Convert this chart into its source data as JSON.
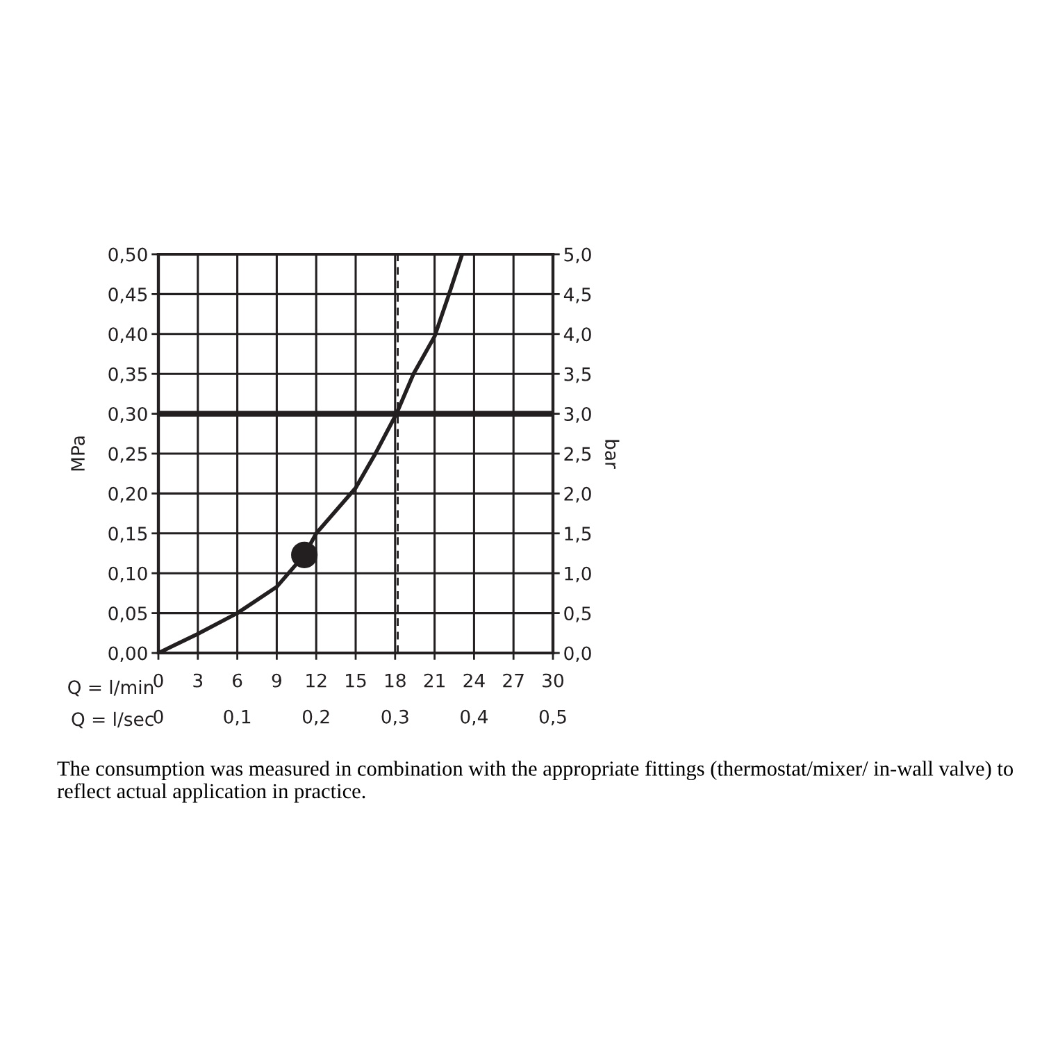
{
  "chart_data": {
    "type": "line",
    "xlabel": "Q = l/min",
    "x2label": "Q = l/sec",
    "ylabel": "MPa",
    "y2label": "bar",
    "xlim": [
      0,
      30
    ],
    "xticks": [
      0,
      3,
      6,
      9,
      12,
      15,
      18,
      21,
      24,
      27,
      30
    ],
    "x2lim": [
      0,
      0.5
    ],
    "x2ticks": [
      0,
      {
        "value": 0.1,
        "label": "0,1"
      },
      {
        "value": 0.2,
        "label": "0,2"
      },
      {
        "value": 0.3,
        "label": "0,3"
      },
      {
        "value": 0.4,
        "label": "0,4"
      },
      {
        "value": 0.5,
        "label": "0,5"
      }
    ],
    "ylim": [
      0,
      0.5
    ],
    "yticks": [
      {
        "value": 0,
        "label": "0,00"
      },
      {
        "value": 0.05,
        "label": "0,05"
      },
      {
        "value": 0.1,
        "label": "0,10"
      },
      {
        "value": 0.15,
        "label": "0,15"
      },
      {
        "value": 0.2,
        "label": "0,20"
      },
      {
        "value": 0.25,
        "label": "0,25"
      },
      {
        "value": 0.3,
        "label": "0,30"
      },
      {
        "value": 0.35,
        "label": "0,35"
      },
      {
        "value": 0.4,
        "label": "0,40"
      },
      {
        "value": 0.45,
        "label": "0,45"
      },
      {
        "value": 0.5,
        "label": "0,50"
      }
    ],
    "y2lim": [
      0,
      5
    ],
    "y2ticks": [
      {
        "value": 0,
        "label": "0,0"
      },
      {
        "value": 0.5,
        "label": "0,5"
      },
      {
        "value": 1,
        "label": "1,0"
      },
      {
        "value": 1.5,
        "label": "1,5"
      },
      {
        "value": 2,
        "label": "2,0"
      },
      {
        "value": 2.5,
        "label": "2,5"
      },
      {
        "value": 3,
        "label": "3,0"
      },
      {
        "value": 3.5,
        "label": "3,5"
      },
      {
        "value": 4,
        "label": "4,0"
      },
      {
        "value": 4.5,
        "label": "4,5"
      },
      {
        "value": 5,
        "label": "5,0"
      }
    ],
    "series": [
      {
        "color": "#231f20",
        "x": [
          0,
          3,
          6,
          9,
          11.1,
          12,
          15,
          16.5,
          18.1,
          19.4,
          21,
          22.1,
          23.1
        ],
        "values": [
          0,
          0.024,
          0.05,
          0.083,
          0.123,
          0.15,
          0.207,
          0.25,
          0.3,
          0.35,
          0.397,
          0.45,
          0.5
        ]
      },
      {
        "type": "scatter",
        "color": "#231f20",
        "marker": "circle",
        "x": [
          11.1
        ],
        "values": [
          0.123
        ]
      }
    ],
    "ref_lines": [
      {
        "axis": "y",
        "value": 0.3,
        "color": "#231f20",
        "line_style": "solid"
      },
      {
        "axis": "x",
        "value": 18.2,
        "color": "#231f20",
        "line_style": "dashed"
      }
    ],
    "grid": true,
    "annotations": [
      "The consumption was measured in combination with the appropriate fittings (thermostat/mixer/ in-wall valve) to reflect actual application in practice."
    ]
  }
}
